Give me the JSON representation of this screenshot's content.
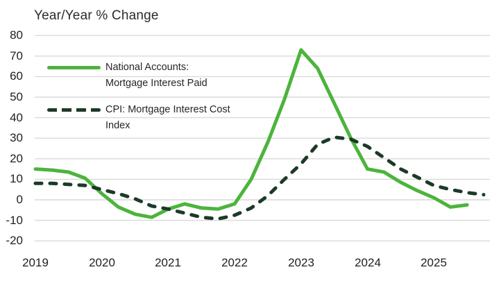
{
  "chart_data": {
    "type": "line",
    "title": "Year/Year % Change",
    "x_tick_labels": [
      "2019",
      "2020",
      "2021",
      "2022",
      "2023",
      "2024",
      "2025"
    ],
    "y_tick_values": [
      80,
      70,
      60,
      50,
      40,
      30,
      20,
      10,
      0,
      -10,
      -20
    ],
    "ylim": [
      -20,
      80
    ],
    "grid": "horizontal-only",
    "legend_position": "top-left-inside",
    "frequency": "quarterly",
    "x_start": "2019-Q1",
    "series": [
      {
        "name": "National Accounts: Mortgage Interest Paid",
        "slug": "national-accounts-mortgage-interest-paid",
        "style": "solid",
        "color": "#4cb43c",
        "values": [
          15,
          14.5,
          13.5,
          10.5,
          3,
          -3.5,
          -7,
          -8.5,
          -4.5,
          -2,
          -4,
          -4.5,
          -2,
          10,
          28,
          49,
          73,
          64,
          47,
          30,
          15,
          13.5,
          8.5,
          4.5,
          1,
          -3.5,
          -2.5
        ]
      },
      {
        "name": "CPI: Mortgage Interest Cost Index",
        "slug": "cpi-mortgage-interest-cost-index",
        "style": "dashed",
        "color": "#1c3a28",
        "values": [
          8,
          8,
          7.5,
          7,
          5,
          3,
          0.5,
          -3,
          -4.5,
          -6.5,
          -8.5,
          -9.3,
          -7.5,
          -4,
          2,
          10,
          17.5,
          27,
          30.5,
          29.5,
          26,
          20.5,
          15,
          11,
          7,
          5,
          3.5,
          2.5
        ]
      }
    ]
  },
  "legend": {
    "items": [
      {
        "line1": "National Accounts:",
        "line2": "Mortgage Interest Paid"
      },
      {
        "line1": "CPI: Mortgage Interest Cost",
        "line2": "Index"
      }
    ]
  },
  "colors": {
    "grid": "#d9d9d9",
    "text": "#1f1f1f",
    "background": "#ffffff",
    "series_solid": "#4cb43c",
    "series_dashed": "#1c3a28"
  }
}
